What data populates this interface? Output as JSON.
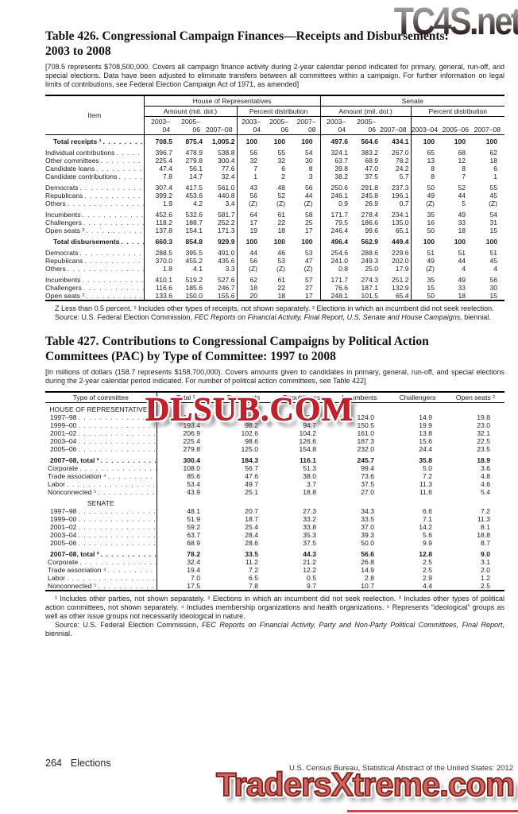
{
  "watermarks": {
    "top": "TC4S.net",
    "middle": "DLSUB.COM",
    "bottom": "TradersXtreme.com",
    "red": "#c8202a",
    "salmon": "#d2655f"
  },
  "table426": {
    "title_line1": "Table 426. Congressional Campaign Finances—Receipts and Disbursements:",
    "title_line2": "2003 to 2008",
    "bracket_note": "[708.5 represents $708,500,000. Covers all campaign finance activity during 2-year calendar period indicated for primary, general, run-off, and special elections. Data have been adjusted to eliminate transfers between all committees within a campaign. For further information on legal limits of contributions, see Federal Election Campaign Act of 1971, as amended]",
    "item_header": "Item",
    "groups": [
      "House of Representatives",
      "Senate"
    ],
    "subgroups": [
      "Amount (mil. dol.)",
      "Percent distribution",
      "Amount (mil. dol.)",
      "Percent distribution"
    ],
    "years": [
      "2003–04",
      "2005–06",
      "2007–08"
    ],
    "rows": [
      {
        "label": "Total receipts ¹",
        "bold": true,
        "ind": true,
        "values": [
          "708.5",
          "875.4",
          "1,005.2",
          "100",
          "100",
          "100",
          "497.6",
          "564.6",
          "434.1",
          "100",
          "100",
          "100"
        ]
      },
      {
        "label": "Individual contributions",
        "gap": true,
        "values": [
          "396.7",
          "478.9",
          "538.8",
          "56",
          "55",
          "54",
          "324.1",
          "383.2",
          "267.0",
          "65",
          "68",
          "62"
        ]
      },
      {
        "label": "Other committees",
        "values": [
          "225.4",
          "279.8",
          "300.4",
          "32",
          "32",
          "30",
          "63.7",
          "68.9",
          "78.2",
          "13",
          "12",
          "18"
        ]
      },
      {
        "label": "Candidate loans",
        "values": [
          "47.4",
          "56.1",
          "77.6",
          "7",
          "6",
          "8",
          "39.8",
          "47.0",
          "24.2",
          "8",
          "8",
          "6"
        ]
      },
      {
        "label": "Candidate contributions",
        "values": [
          "7.8",
          "14.7",
          "32.4",
          "1",
          "2",
          "3",
          "38.2",
          "37.5",
          "5.7",
          "8",
          "7",
          "1"
        ]
      },
      {
        "label": "Democrats",
        "gap": true,
        "values": [
          "307.4",
          "417.5",
          "561.0",
          "43",
          "48",
          "56",
          "250.6",
          "291.8",
          "237.3",
          "50",
          "52",
          "55"
        ]
      },
      {
        "label": "Republicans",
        "values": [
          "399.2",
          "453.6",
          "440.8",
          "56",
          "52",
          "44",
          "246.1",
          "245.8",
          "196.1",
          "49",
          "44",
          "45"
        ]
      },
      {
        "label": "Others",
        "values": [
          "1.9",
          "4.2",
          "3.4",
          "(Z)",
          "(Z)",
          "(Z)",
          "0.9",
          "26.9",
          "0.7",
          "(Z)",
          "5",
          "(Z)"
        ]
      },
      {
        "label": "Incumbents",
        "gap": true,
        "values": [
          "452.6",
          "532.6",
          "581.7",
          "64",
          "61",
          "58",
          "171.7",
          "278.4",
          "234.1",
          "35",
          "49",
          "54"
        ]
      },
      {
        "label": "Challengers",
        "values": [
          "118.2",
          "188.7",
          "252.2",
          "17",
          "22",
          "25",
          "79.5",
          "186.6",
          "135.0",
          "16",
          "33",
          "31"
        ]
      },
      {
        "label": "Open seats ²",
        "values": [
          "137.8",
          "154.1",
          "171.3",
          "19",
          "18",
          "17",
          "246.4",
          "99.6",
          "65.1",
          "50",
          "18",
          "15"
        ]
      },
      {
        "label": "Total disbursements",
        "bold": true,
        "ind": true,
        "gap": true,
        "values": [
          "660.3",
          "854.8",
          "929.9",
          "100",
          "100",
          "100",
          "496.4",
          "562.9",
          "449.4",
          "100",
          "100",
          "100"
        ]
      },
      {
        "label": "Democrats",
        "gap": true,
        "values": [
          "288.5",
          "395.5",
          "491.0",
          "44",
          "46",
          "53",
          "254.6",
          "288.6",
          "229.6",
          "51",
          "51",
          "51"
        ]
      },
      {
        "label": "Republicans",
        "values": [
          "370.0",
          "455.2",
          "435.6",
          "56",
          "53",
          "47",
          "241.0",
          "249.3",
          "202.0",
          "49",
          "44",
          "45"
        ]
      },
      {
        "label": "Others",
        "values": [
          "1.8",
          "4.1",
          "3.3",
          "(Z)",
          "(Z)",
          "(Z)",
          "0.8",
          "25.0",
          "17.9",
          "(Z)",
          "4",
          "4"
        ]
      },
      {
        "label": "Incumbents",
        "gap": true,
        "values": [
          "410.1",
          "519.2",
          "527.6",
          "62",
          "61",
          "57",
          "171.7",
          "274.3",
          "251.2",
          "35",
          "49",
          "56"
        ]
      },
      {
        "label": "Challengers",
        "values": [
          "116.6",
          "185.6",
          "246.7",
          "18",
          "22",
          "27",
          "76.6",
          "187.1",
          "132.9",
          "15",
          "33",
          "30"
        ]
      },
      {
        "label": "Open seats ²",
        "values": [
          "133.6",
          "150.0",
          "155.6",
          "20",
          "18",
          "17",
          "248.1",
          "101.5",
          "65.4",
          "50",
          "18",
          "15"
        ]
      }
    ],
    "footnote": "Z Less than 0.5 percent. ¹ Includes other types of receipts, not shown separately. ² Elections in which an incumbent did not seek reelection.",
    "source_prefix": "Source: U.S. Federal Election Commission, ",
    "source_italic": "FEC Reports on Financial Activity, Final Report, U.S. Senate and House Campaigns,",
    "source_suffix": " biennial."
  },
  "table427": {
    "title_line1": "Table 427. Contributions to Congressional Campaigns by Political Action",
    "title_line2": "Committees (PAC) by Type of Committee: 1997 to 2008",
    "bracket_note": "[In millions of dollars (158.7 represents $158,700,000). Covers amounts given to candidates in primary, general, run-off, and special elections during the 2-year calendar period indicated. For number of political action committees, see Table 422]",
    "headers": [
      "Type of committee",
      "Total ¹",
      "Democrats",
      "Republicans",
      "Incumbents",
      "Challengers",
      "Open seats ²"
    ],
    "rows": [
      {
        "section": "HOUSE OF REPRESENTATIVES"
      },
      {
        "label": "1997–98",
        "ind": true,
        "values": [
          "158.7",
          "73.2",
          "85.2",
          "124.0",
          "14.9",
          "19.8"
        ]
      },
      {
        "label": "1999–00",
        "ind": true,
        "values": [
          "193.4",
          "98.2",
          "94.7",
          "150.5",
          "19.9",
          "23.0"
        ]
      },
      {
        "label": "2001–02",
        "ind": true,
        "values": [
          "206.9",
          "102.6",
          "104.2",
          "161.0",
          "13.8",
          "32.1"
        ]
      },
      {
        "label": "2003–04",
        "ind": true,
        "values": [
          "225.4",
          "98.6",
          "126.6",
          "187.3",
          "15.6",
          "22.5"
        ]
      },
      {
        "label": "2005–06",
        "ind": true,
        "values": [
          "279.8",
          "125.0",
          "154.8",
          "232.0",
          "24.4",
          "23.5"
        ]
      },
      {
        "label": "2007–08, total ³",
        "bold": true,
        "ind": true,
        "gap": true,
        "values": [
          "300.4",
          "184.3",
          "116.1",
          "245.7",
          "35.8",
          "18.9"
        ]
      },
      {
        "label": "Corporate",
        "values": [
          "108.0",
          "56.7",
          "51.3",
          "99.4",
          "5.0",
          "3.6"
        ]
      },
      {
        "label": "Trade association ⁴",
        "values": [
          "85.6",
          "47.6",
          "38.0",
          "73.6",
          "7.2",
          "4.8"
        ]
      },
      {
        "label": "Labor",
        "values": [
          "53.4",
          "49.7",
          "3.7",
          "37.5",
          "11.3",
          "4.6"
        ]
      },
      {
        "label": "Nonconnected ⁵",
        "values": [
          "43.9",
          "25.1",
          "18.8",
          "27.0",
          "11.6",
          "5.4"
        ]
      },
      {
        "section": "SENATE",
        "gap": true
      },
      {
        "label": "1997–98",
        "ind": true,
        "values": [
          "48.1",
          "20.7",
          "27.3",
          "34.3",
          "6.6",
          "7.2"
        ]
      },
      {
        "label": "1999–00",
        "ind": true,
        "values": [
          "51.9",
          "18.7",
          "33.2",
          "33.5",
          "7.1",
          "11.3"
        ]
      },
      {
        "label": "2001–02",
        "ind": true,
        "values": [
          "59.2",
          "25.4",
          "33.8",
          "37.0",
          "14.2",
          "8.1"
        ]
      },
      {
        "label": "2003–04",
        "ind": true,
        "values": [
          "63.7",
          "28.4",
          "35.3",
          "39.3",
          "5.6",
          "18.8"
        ]
      },
      {
        "label": "2005–06",
        "ind": true,
        "values": [
          "68.9",
          "28.6",
          "37.5",
          "50.0",
          "9.9",
          "8.7"
        ]
      },
      {
        "label": "2007–08, total ³",
        "bold": true,
        "ind": true,
        "gap": true,
        "values": [
          "78.2",
          "33.5",
          "44.3",
          "56.6",
          "12.8",
          "9.0"
        ]
      },
      {
        "label": "Corporate",
        "values": [
          "32.4",
          "11.2",
          "21.2",
          "26.8",
          "2.5",
          "3.1"
        ]
      },
      {
        "label": "Trade association ⁴",
        "values": [
          "19.4",
          "7.2",
          "12.2",
          "14.9",
          "2.5",
          "2.0"
        ]
      },
      {
        "label": "Labor",
        "values": [
          "7.0",
          "6.5",
          "0.5",
          "2.8",
          "2.9",
          "1.2"
        ]
      },
      {
        "label": "Nonconnected ⁵",
        "values": [
          "17.5",
          "7.8",
          "9.7",
          "10.7",
          "4.4",
          "2.5"
        ]
      }
    ],
    "footnote": "¹ Includes other parties, not shown separately. ² Elections in which an incumbent did not seek reelection. ³ Includes other types of political action committees, not shown separately. ⁴ Includes membership organizations and health organizations. ⁵ Represents “ideological” groups as well as other issue groups not necessarily ideological in nature.",
    "source_prefix": "Source: U.S. Federal Election Commission, ",
    "source_italic": "FEC Reports on Financial Activity, Party and Non-Party Political Committees, Final Report,",
    "source_suffix": " biennial."
  },
  "footer": {
    "page_number": "264",
    "section": "Elections",
    "source": "U.S. Census Bureau, Statistical Abstract of the United States: 2012"
  }
}
